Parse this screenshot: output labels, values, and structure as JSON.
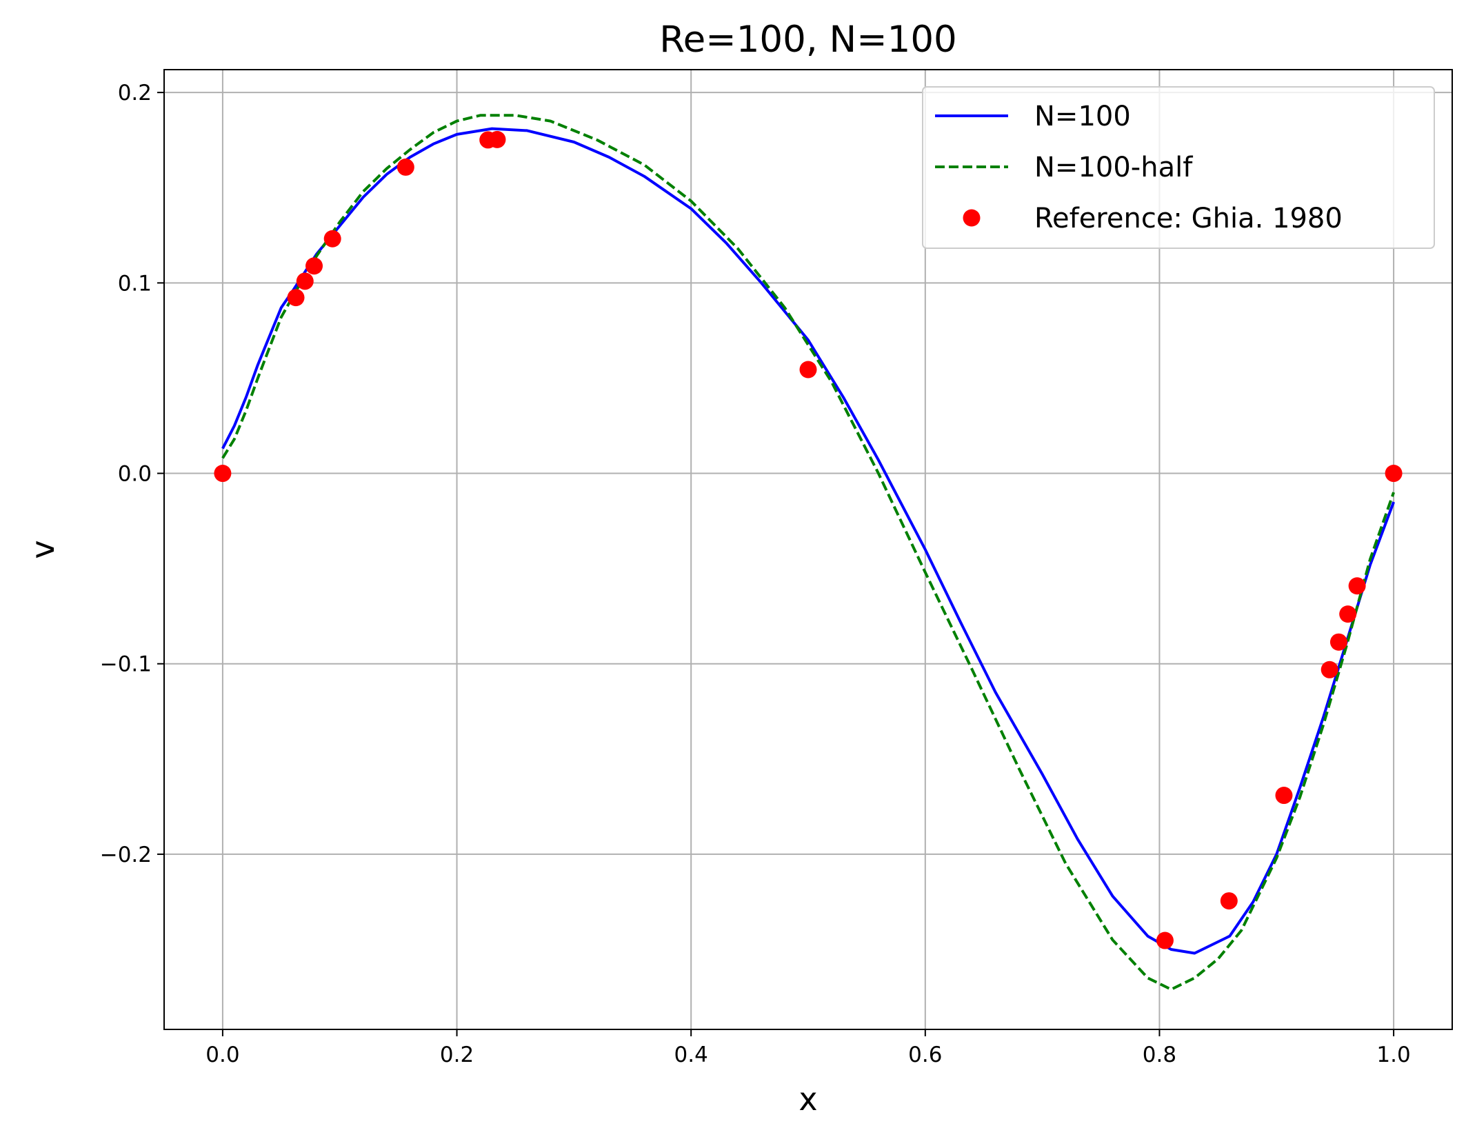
{
  "chart_data": {
    "type": "line",
    "title": "Re=100, N=100",
    "xlabel": "x",
    "ylabel": "v",
    "xlim": [
      -0.05,
      1.05
    ],
    "ylim": [
      -0.292,
      0.212
    ],
    "xticks": [
      0.0,
      0.2,
      0.4,
      0.6,
      0.8,
      1.0
    ],
    "xtick_labels": [
      "0.0",
      "0.2",
      "0.4",
      "0.6",
      "0.8",
      "1.0"
    ],
    "yticks": [
      -0.2,
      -0.1,
      0.0,
      0.1,
      0.2
    ],
    "ytick_labels": [
      "−0.2",
      "−0.1",
      "0.0",
      "0.1",
      "0.2"
    ],
    "grid": true,
    "legend_position": "top-right",
    "series": [
      {
        "name": "N=100",
        "style": "solid",
        "color": "#0000ff",
        "x": [
          0.0,
          0.01,
          0.02,
          0.03,
          0.04,
          0.05,
          0.06,
          0.08,
          0.1,
          0.12,
          0.14,
          0.16,
          0.18,
          0.2,
          0.23,
          0.26,
          0.3,
          0.33,
          0.36,
          0.4,
          0.43,
          0.46,
          0.5,
          0.53,
          0.56,
          0.6,
          0.63,
          0.66,
          0.7,
          0.73,
          0.76,
          0.79,
          0.81,
          0.83,
          0.86,
          0.88,
          0.9,
          0.92,
          0.94,
          0.96,
          0.98,
          1.0
        ],
        "y": [
          0.013,
          0.025,
          0.04,
          0.057,
          0.072,
          0.087,
          0.096,
          0.115,
          0.13,
          0.145,
          0.157,
          0.166,
          0.173,
          0.178,
          0.181,
          0.18,
          0.174,
          0.166,
          0.156,
          0.139,
          0.121,
          0.1,
          0.07,
          0.04,
          0.007,
          -0.04,
          -0.078,
          -0.115,
          -0.158,
          -0.192,
          -0.222,
          -0.243,
          -0.25,
          -0.252,
          -0.243,
          -0.225,
          -0.2,
          -0.165,
          -0.128,
          -0.088,
          -0.048,
          -0.015
        ]
      },
      {
        "name": "N=100-half",
        "style": "dashed",
        "color": "#008000",
        "x": [
          0.0,
          0.01,
          0.02,
          0.03,
          0.04,
          0.05,
          0.06,
          0.08,
          0.1,
          0.12,
          0.14,
          0.16,
          0.18,
          0.2,
          0.22,
          0.25,
          0.28,
          0.32,
          0.36,
          0.4,
          0.44,
          0.48,
          0.52,
          0.56,
          0.6,
          0.64,
          0.68,
          0.72,
          0.76,
          0.79,
          0.81,
          0.83,
          0.85,
          0.87,
          0.9,
          0.92,
          0.94,
          0.96,
          0.98,
          1.0
        ],
        "y": [
          0.008,
          0.018,
          0.033,
          0.05,
          0.066,
          0.082,
          0.093,
          0.114,
          0.132,
          0.148,
          0.16,
          0.17,
          0.179,
          0.185,
          0.188,
          0.188,
          0.185,
          0.175,
          0.162,
          0.143,
          0.118,
          0.087,
          0.048,
          0.0,
          -0.052,
          -0.103,
          -0.155,
          -0.205,
          -0.245,
          -0.265,
          -0.271,
          -0.265,
          -0.255,
          -0.24,
          -0.202,
          -0.17,
          -0.132,
          -0.09,
          -0.045,
          -0.01
        ]
      },
      {
        "name": "Reference: Ghia. 1980",
        "style": "markers",
        "color": "#ff0000",
        "x": [
          0.0,
          0.0625,
          0.0703,
          0.0781,
          0.0938,
          0.1563,
          0.2266,
          0.2344,
          0.5,
          0.8047,
          0.8594,
          0.9063,
          0.9453,
          0.9531,
          0.9609,
          0.9688,
          1.0
        ],
        "y": [
          0.0,
          0.0923,
          0.1009,
          0.1089,
          0.1232,
          0.1608,
          0.1751,
          0.1753,
          0.0545,
          -0.2453,
          -0.2245,
          -0.1691,
          -0.1031,
          -0.0886,
          -0.0739,
          -0.0591,
          0.0
        ]
      }
    ]
  }
}
